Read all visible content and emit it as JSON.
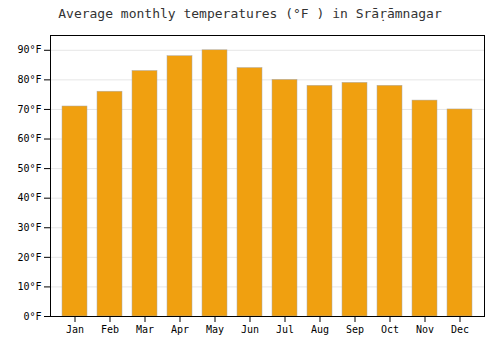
{
  "chart_data": {
    "type": "bar",
    "title": "Average monthly temperatures (°F ) in Srāṛāmnagar",
    "categories": [
      "Jan",
      "Feb",
      "Mar",
      "Apr",
      "May",
      "Jun",
      "Jul",
      "Aug",
      "Sep",
      "Oct",
      "Nov",
      "Dec"
    ],
    "values": [
      71,
      76,
      83,
      88,
      90,
      84,
      80,
      78,
      79,
      78,
      73,
      70
    ],
    "color": "#F0A010",
    "ylim": [
      0,
      95
    ],
    "yticks": [
      {
        "value": 0,
        "label": "0°F"
      },
      {
        "value": 10,
        "label": "10°F"
      },
      {
        "value": 20,
        "label": "20°F"
      },
      {
        "value": 30,
        "label": "30°F"
      },
      {
        "value": 40,
        "label": "40°F"
      },
      {
        "value": 50,
        "label": "50°F"
      },
      {
        "value": 60,
        "label": "60°F"
      },
      {
        "value": 70,
        "label": "70°F"
      },
      {
        "value": 80,
        "label": "80°F"
      },
      {
        "value": 90,
        "label": "90°F"
      }
    ],
    "grid": true
  }
}
